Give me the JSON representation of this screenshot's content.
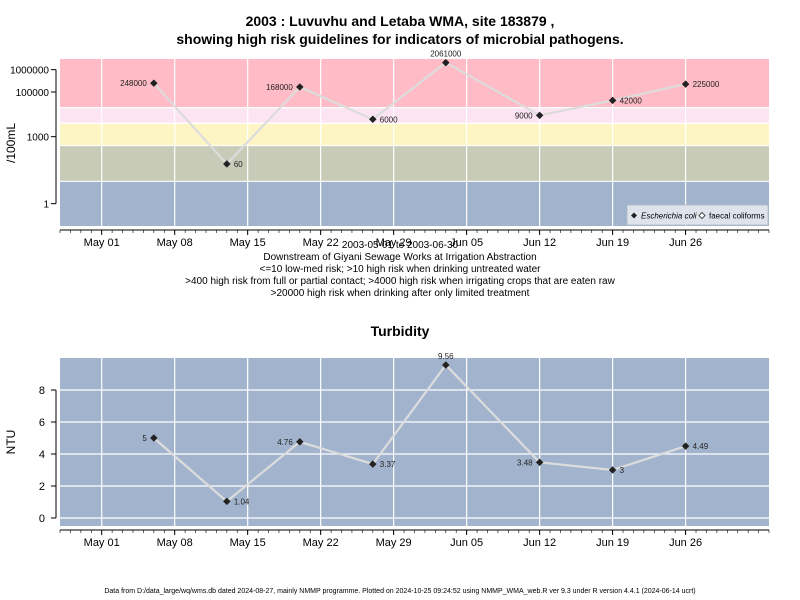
{
  "chart_data": [
    {
      "type": "line",
      "title_line1": "2003 : Luvuvhu and Letaba WMA, site 183879 ,",
      "title_line2": "showing high risk guidelines for indicators of microbial pathogens.",
      "ylabel": "/100mL",
      "yscale": "log",
      "ylim": [
        0.1,
        3000000
      ],
      "yticks": [
        "1",
        "1000",
        "100000",
        "1000000"
      ],
      "xticks": [
        "May 01",
        "May 08",
        "May 15",
        "May 22",
        "May 29",
        "Jun 05",
        "Jun 12",
        "Jun 19",
        "Jun 26"
      ],
      "xrange_label": "2003-05-01 to 2003-06-30",
      "notes": [
        "Downstream of Giyani Sewage Works at Irrigation Abstraction",
        "<=10 low-med risk; >10 high risk when drinking untreated water",
        ">400 high risk from full or partial contact; >4000 high risk when irrigating crops that are eaten raw",
        ">20000 high risk when drinking after only limited treatment"
      ],
      "bands": [
        {
          "from": 0.1,
          "to": 10,
          "color": "#a2b4cd"
        },
        {
          "from": 10,
          "to": 400,
          "color": "#c7cbb7"
        },
        {
          "from": 400,
          "to": 4000,
          "color": "#fef5c4"
        },
        {
          "from": 4000,
          "to": 20000,
          "color": "#fce4f3"
        },
        {
          "from": 20000,
          "to": 3000000,
          "color": "#ffbcc6"
        }
      ],
      "legend": {
        "position": "bottom-right",
        "items": [
          "Escherichia coli",
          "faecal coliforms"
        ]
      },
      "series": [
        {
          "name": "Escherichia coli",
          "x": [
            "2003-05-06",
            "2003-05-13",
            "2003-05-20",
            "2003-05-27",
            "2003-06-03",
            "2003-06-12",
            "2003-06-19",
            "2003-06-26"
          ],
          "values": [
            248000,
            60,
            168000,
            6000,
            2061000,
            9000,
            42000,
            225000
          ],
          "labels": [
            "248000",
            "60",
            "168000",
            "6000",
            "2061000",
            "9000",
            "42000",
            "225000"
          ]
        }
      ]
    },
    {
      "type": "line",
      "title": "Turbidity",
      "ylabel": "NTU",
      "ylim": [
        -0.5,
        10
      ],
      "yticks": [
        "0",
        "2",
        "4",
        "6",
        "8"
      ],
      "xticks": [
        "May 01",
        "May 08",
        "May 15",
        "May 22",
        "May 29",
        "Jun 05",
        "Jun 12",
        "Jun 19",
        "Jun 26"
      ],
      "series": [
        {
          "x": [
            "2003-05-06",
            "2003-05-13",
            "2003-05-20",
            "2003-05-27",
            "2003-06-03",
            "2003-06-12",
            "2003-06-19",
            "2003-06-26"
          ],
          "values": [
            5,
            1.04,
            4.76,
            3.37,
            9.56,
            3.48,
            3,
            4.49
          ],
          "labels": [
            "5",
            "1.04",
            "4.76",
            "3.37",
            "9.56",
            "3.48",
            "3",
            "4.49"
          ]
        }
      ]
    }
  ],
  "footer": "Data from D:/data_large/wq/wms.db dated 2024-08-27, mainly NMMP programme. Plotted on 2024-10-25 09:24:52 using NMMP_WMA_web.R ver 9.3 under R version 4.4.1 (2024-06-14 ucrt)"
}
